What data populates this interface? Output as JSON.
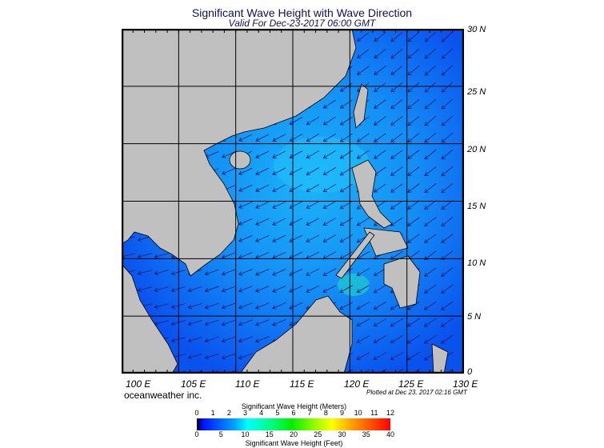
{
  "title": "Significant Wave Height with Wave Direction",
  "subtitle": "Valid For Dec-23-2017 06:00 GMT",
  "lat_labels": [
    "30 N",
    "25 N",
    "20 N",
    "15 N",
    "10 N",
    "5 N",
    "0"
  ],
  "lon_labels": [
    "100 E",
    "105 E",
    "110 E",
    "115 E",
    "120 E",
    "125 E",
    "130 E"
  ],
  "brand": "oceanweather inc.",
  "plotted": "Plotted at Dec 23, 2017 02:16 GMT",
  "colorbar": {
    "meters_title": "Significant Wave Height (Meters)",
    "meters_ticks": [
      "0",
      "1",
      "2",
      "3",
      "4",
      "5",
      "6",
      "7",
      "8",
      "9",
      "10",
      "11",
      "12"
    ],
    "feet_title": "Significant Wave Height (Feet)",
    "feet_ticks": [
      "0",
      "5",
      "10",
      "15",
      "20",
      "25",
      "30",
      "35",
      "40"
    ],
    "colors": [
      "#000000",
      "#0010ff",
      "#00a8ff",
      "#00ffff",
      "#00f000",
      "#ffff00",
      "#ff5000",
      "#ff0000"
    ]
  },
  "map": {
    "lon_range": [
      100,
      130
    ],
    "lat_range": [
      0,
      30
    ],
    "grid_step_deg": 5,
    "wave_direction": "toward southwest",
    "land_color": "#c0c0c0",
    "ocean_color": "#1a8cf5"
  }
}
